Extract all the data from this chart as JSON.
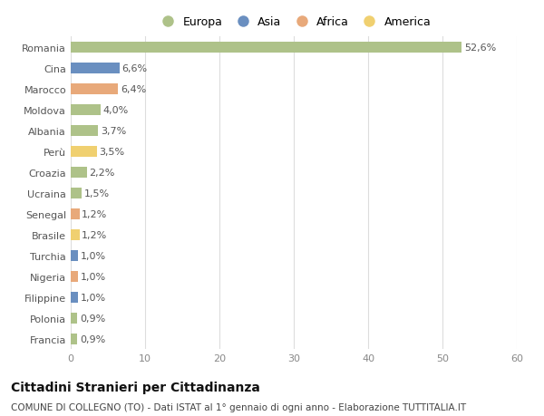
{
  "countries": [
    "Romania",
    "Cina",
    "Marocco",
    "Moldova",
    "Albania",
    "Perù",
    "Croazia",
    "Ucraina",
    "Senegal",
    "Brasile",
    "Turchia",
    "Nigeria",
    "Filippine",
    "Polonia",
    "Francia"
  ],
  "values": [
    52.6,
    6.6,
    6.4,
    4.0,
    3.7,
    3.5,
    2.2,
    1.5,
    1.2,
    1.2,
    1.0,
    1.0,
    1.0,
    0.9,
    0.9
  ],
  "labels": [
    "52,6%",
    "6,6%",
    "6,4%",
    "4,0%",
    "3,7%",
    "3,5%",
    "2,2%",
    "1,5%",
    "1,2%",
    "1,2%",
    "1,0%",
    "1,0%",
    "1,0%",
    "0,9%",
    "0,9%"
  ],
  "regions": [
    "Europa",
    "Asia",
    "Africa",
    "Europa",
    "Europa",
    "America",
    "Europa",
    "Europa",
    "Africa",
    "America",
    "Asia",
    "Africa",
    "Asia",
    "Europa",
    "Europa"
  ],
  "colors": {
    "Europa": "#aec289",
    "Asia": "#6a8fc0",
    "Africa": "#e8a97a",
    "America": "#f0d070"
  },
  "legend_order": [
    "Europa",
    "Asia",
    "Africa",
    "America"
  ],
  "xlim": [
    0,
    60
  ],
  "xticks": [
    0,
    10,
    20,
    30,
    40,
    50,
    60
  ],
  "title": "Cittadini Stranieri per Cittadinanza",
  "subtitle": "COMUNE DI COLLEGNO (TO) - Dati ISTAT al 1° gennaio di ogni anno - Elaborazione TUTTITALIA.IT",
  "bg_color": "#ffffff",
  "grid_color": "#dddddd",
  "bar_height": 0.55,
  "label_fontsize": 8,
  "tick_fontsize": 8,
  "title_fontsize": 10,
  "subtitle_fontsize": 7.5
}
